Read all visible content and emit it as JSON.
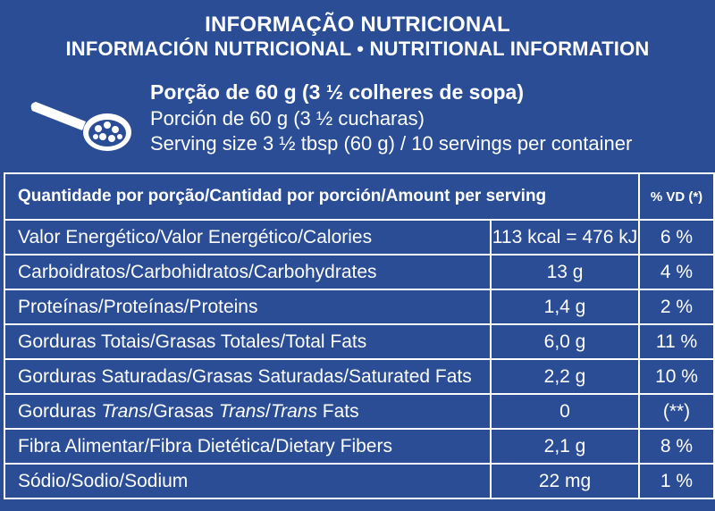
{
  "header": {
    "title_pt": "INFORMAÇÃO NUTRICIONAL",
    "title_es_en": "INFORMACIÓN NUTRICIONAL • NUTRITIONAL INFORMATION"
  },
  "serving": {
    "icon": "spoon-icon",
    "pt": "Porção de 60 g (3 ½ colheres de sopa)",
    "es": "Porción de 60 g (3 ½ cucharas)",
    "en": "Serving size  3 ½  tbsp  (60 g) / 10 servings per container"
  },
  "table": {
    "header_amount": "Quantidade por porção/Cantidad por porción/Amount per serving",
    "header_vd": "% VD (*)",
    "rows": [
      {
        "label": "Valor Energético/Valor Energético/Calories",
        "qty": "113 kcal = 476 kJ",
        "vd": "6 %"
      },
      {
        "label": "Carboidratos/Carbohidratos/Carbohydrates",
        "qty": "13 g",
        "vd": "4 %"
      },
      {
        "label": "Proteínas/Proteínas/Proteins",
        "qty": "1,4 g",
        "vd": "2 %"
      },
      {
        "label": "Gorduras Totais/Grasas Totales/Total Fats",
        "qty": "6,0 g",
        "vd": "11 %"
      },
      {
        "label": "Gorduras Saturadas/Grasas Saturadas/Saturated Fats",
        "qty": "2,2 g",
        "vd": "10 %"
      },
      {
        "label_a": "Gorduras ",
        "label_b": "Trans",
        "label_c": "/Grasas ",
        "label_d": "Trans",
        "label_e": "/",
        "label_f": "Trans",
        "label_g": " Fats",
        "qty": "0",
        "vd": "(**)"
      },
      {
        "label": "Fibra Alimentar/Fibra Dietética/Dietary Fibers",
        "qty": "2,1 g",
        "vd": "8 %"
      },
      {
        "label": "Sódio/Sodio/Sodium",
        "qty": "22 mg",
        "vd": "1 %"
      }
    ]
  },
  "colors": {
    "background": "#2a4d95",
    "text": "#ffffff"
  }
}
